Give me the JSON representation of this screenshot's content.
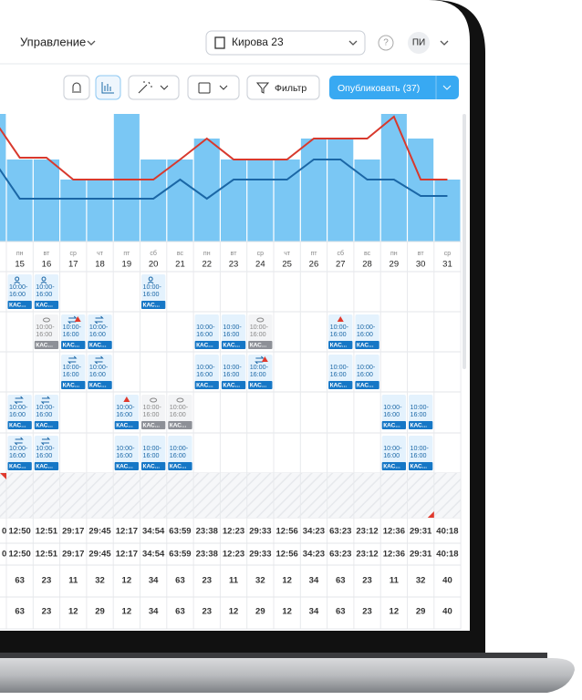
{
  "header": {
    "menu": "Управление",
    "location": "Кирова 23",
    "help": "?",
    "avatar": "ПИ"
  },
  "toolbar": {
    "filter": "Фильтр",
    "publish": "Опубликовать (37)"
  },
  "load": {
    "bars": [
      140,
      90,
      90,
      68,
      68,
      140,
      90,
      90,
      113,
      90,
      90,
      90,
      113,
      113,
      90,
      140,
      113,
      68
    ],
    "red": [
      135,
      92,
      92,
      68,
      68,
      68,
      68,
      90,
      113,
      90,
      90,
      90,
      113,
      113,
      113,
      137,
      68,
      68
    ],
    "blue": [
      90,
      47,
      47,
      47,
      47,
      47,
      47,
      68,
      47,
      68,
      68,
      68,
      90,
      90,
      68,
      68,
      50,
      50
    ]
  },
  "weekdays": [
    null,
    "пн",
    "вт",
    "ср",
    "чт",
    "пт",
    "сб",
    "вс",
    "пн",
    "вт",
    "ср",
    "чт",
    "пт",
    "сб",
    "вс",
    "пн",
    "вт",
    "ср"
  ],
  "dates": [
    null,
    "15",
    "16",
    "17",
    "18",
    "19",
    "20",
    "21",
    "22",
    "23",
    "24",
    "25",
    "26",
    "27",
    "28",
    "29",
    "30",
    "31"
  ],
  "rows": [
    [
      {
        "day": "15",
        "time": "10:00-16:00",
        "tag": "КАС...",
        "icon": "people"
      },
      {
        "day": "16",
        "time": "10:00-16:00",
        "tag": "КАС...",
        "icon": "people"
      },
      {
        "day": "20",
        "time": "10:00-16:00",
        "tag": "КАС...",
        "icon": "people"
      }
    ],
    [
      {
        "day": "16",
        "time": "10:00-16:00",
        "tag": "КАС...",
        "icon": "eye",
        "draft": true
      },
      {
        "day": "17",
        "time": "10:00-16:00",
        "tag": "КАС...",
        "icon": "swap",
        "warn": true
      },
      {
        "day": "18",
        "time": "10:00-16:00",
        "tag": "КАС...",
        "icon": "swap"
      },
      {
        "day": "22",
        "time": "10:00-16:00",
        "tag": "КАС..."
      },
      {
        "day": "23",
        "time": "10:00-16:00",
        "tag": "КАС..."
      },
      {
        "day": "24",
        "time": "10:00-16:00",
        "tag": "КАС...",
        "icon": "eye",
        "draft": true
      },
      {
        "day": "27",
        "time": "10:00-16:00",
        "tag": "КАС...",
        "warn": true
      },
      {
        "day": "28",
        "time": "10:00-16:00",
        "tag": "КАС..."
      }
    ],
    [
      {
        "day": "17",
        "time": "10:00-16:00",
        "tag": "КАС...",
        "icon": "swap"
      },
      {
        "day": "18",
        "time": "10:00-16:00",
        "tag": "КАС...",
        "icon": "swap"
      },
      {
        "day": "22",
        "time": "10:00-16:00",
        "tag": "КАС..."
      },
      {
        "day": "23",
        "time": "10:00-16:00",
        "tag": "КАС..."
      },
      {
        "day": "24",
        "time": "10:00-16:00",
        "tag": "КАС...",
        "icon": "swap",
        "warn": true
      },
      {
        "day": "27",
        "time": "10:00-16:00",
        "tag": "КАС..."
      },
      {
        "day": "28",
        "time": "10:00-16:00",
        "tag": "КАС..."
      }
    ],
    [
      {
        "day": "15",
        "time": "10:00-16:00",
        "tag": "КАС...",
        "icon": "swap"
      },
      {
        "day": "16",
        "time": "10:00-16:00",
        "tag": "КАС...",
        "icon": "swap"
      },
      {
        "day": "19",
        "time": "10:00-16:00",
        "tag": "КАС...",
        "warn": true
      },
      {
        "day": "20",
        "time": "10:00-16:00",
        "tag": "КАС...",
        "icon": "eye",
        "draft": true
      },
      {
        "day": "21",
        "time": "10:00-16:00",
        "tag": "КАС...",
        "icon": "eye",
        "draft": true
      },
      {
        "day": "29",
        "time": "10:00-16:00",
        "tag": "КАС..."
      },
      {
        "day": "30",
        "time": "10:00-16:00",
        "tag": "КАС..."
      }
    ],
    [
      {
        "day": "15",
        "time": "10:00-16:00",
        "tag": "КАС...",
        "icon": "swap"
      },
      {
        "day": "16",
        "time": "10:00-16:00",
        "tag": "КАС...",
        "icon": "swap"
      },
      {
        "day": "19",
        "time": "10:00-16:00",
        "tag": "КАС..."
      },
      {
        "day": "20",
        "time": "10:00-16:00",
        "tag": "КАС..."
      },
      {
        "day": "21",
        "time": "10:00-16:00",
        "tag": "КАС..."
      },
      {
        "day": "29",
        "time": "10:00-16:00",
        "tag": "КАС..."
      },
      {
        "day": "30",
        "time": "10:00-16:00",
        "tag": "КАС..."
      }
    ]
  ],
  "totals": [
    [
      "0",
      "12:50",
      "12:51",
      "29:17",
      "29:45",
      "12:17",
      "34:54",
      "63:59",
      "23:38",
      "12:23",
      "29:33",
      "12:56",
      "34:23",
      "63:23",
      "23:12",
      "12:36",
      "29:31",
      "40:18"
    ],
    [
      "0",
      "12:50",
      "12:51",
      "29:17",
      "29:45",
      "12:17",
      "34:54",
      "63:59",
      "23:38",
      "12:23",
      "29:33",
      "12:56",
      "34:23",
      "63:23",
      "23:12",
      "12:36",
      "29:31",
      "40:18"
    ],
    [
      null,
      63,
      23,
      11,
      32,
      12,
      34,
      63,
      23,
      11,
      32,
      12,
      34,
      63,
      23,
      11,
      32,
      40
    ],
    [
      null,
      63,
      23,
      12,
      29,
      12,
      34,
      63,
      23,
      12,
      29,
      12,
      34,
      63,
      23,
      12,
      29,
      40
    ]
  ]
}
